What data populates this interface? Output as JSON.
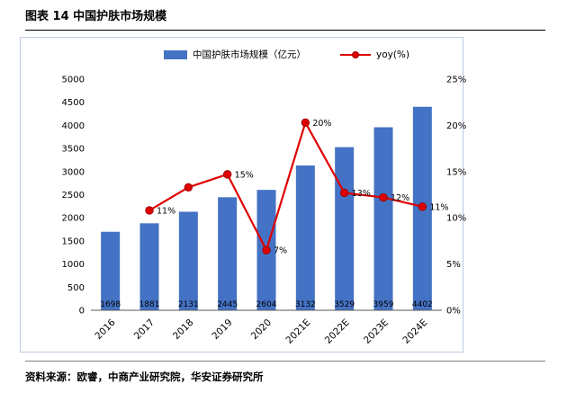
{
  "page": {
    "title": "图表 14 中国护肤市场规模",
    "source": "资料来源：欧睿，中商产业研究院，华安证券研究所"
  },
  "colors": {
    "bar": "#4472c4",
    "line": "#e00000",
    "line_dark": "#9c0006",
    "axis": "#595959",
    "text": "#000000"
  },
  "chart_data": {
    "type": "bar+line",
    "title": "图表 14 中国护肤市场规模",
    "categories": [
      "2016",
      "2017",
      "2018",
      "2019",
      "2020",
      "2021E",
      "2022E",
      "2023E",
      "2024E"
    ],
    "series": [
      {
        "name": "中国护肤市场规模（亿元）",
        "type": "bar",
        "axis": "left",
        "values": [
          1698,
          1881,
          2131,
          2445,
          2604,
          3132,
          3529,
          3959,
          4402
        ],
        "labels": [
          "1698",
          "1881",
          "2131",
          "2445",
          "2604",
          "3132",
          "3529",
          "3959",
          "4402"
        ]
      },
      {
        "name": "yoy(%)",
        "type": "line",
        "axis": "right",
        "values": [
          null,
          10.8,
          13.3,
          14.7,
          6.5,
          20.3,
          12.7,
          12.2,
          11.2
        ],
        "labels": [
          null,
          "11%",
          null,
          "15%",
          "7%",
          "20%",
          "13%",
          "12%",
          "11%"
        ]
      }
    ],
    "left_axis": {
      "min": 0,
      "max": 5000,
      "step": 500,
      "ticks": [
        "0",
        "500",
        "1000",
        "1500",
        "2000",
        "2500",
        "3000",
        "3500",
        "4000",
        "4500",
        "5000"
      ]
    },
    "right_axis": {
      "min": 0,
      "max": 25,
      "step": 5,
      "ticks": [
        "0%",
        "5%",
        "10%",
        "15%",
        "20%",
        "25%"
      ]
    },
    "legend_position": "top",
    "grid": false
  }
}
